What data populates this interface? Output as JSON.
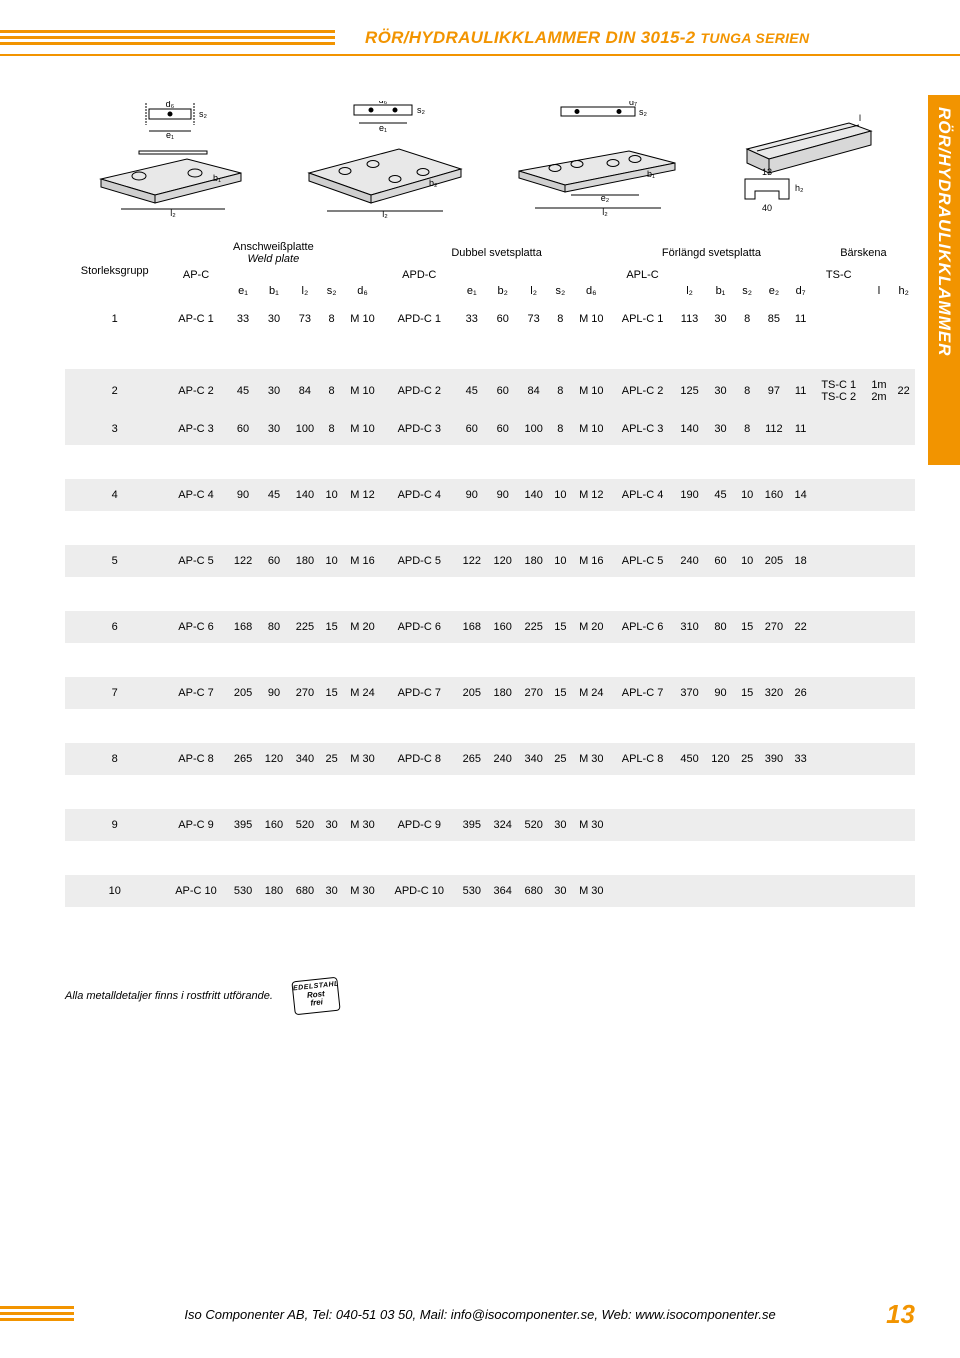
{
  "header": {
    "title_main": "RÖR/HYDRAULIKKLAMMER DIN 3015-2",
    "title_sub": "TUNGA SERIEN",
    "side_tab": "RÖR/HYDRAULIKKLAMMER"
  },
  "colors": {
    "accent": "#f29400",
    "shade": "#ededed"
  },
  "diagrams": {
    "ap_labels": {
      "d": "d₆",
      "e": "e₁",
      "b": "b₁",
      "l": "l₂",
      "s": "s₂"
    },
    "apd_labels": {
      "d": "d₆",
      "e": "e₁",
      "b": "b₂",
      "l": "l₂",
      "s": "s₂"
    },
    "apl_labels": {
      "d": "d₇",
      "e": "e₂",
      "b": "b₁",
      "l": "l₂",
      "s": "s₂"
    },
    "ts_labels": {
      "h": "h₂",
      "l": "l",
      "w": "40",
      "n": "13"
    }
  },
  "table": {
    "group_header": "Storleksgrupp",
    "groups": [
      {
        "code": "AP-C",
        "top": "Anschweißplatte",
        "top_it": "Weld plate",
        "cols": [
          "e₁",
          "b₁",
          "l₂",
          "s₂",
          "d₆"
        ]
      },
      {
        "code": "APD-C",
        "top": "Dubbel svetsplatta",
        "top_it": "",
        "cols": [
          "e₁",
          "b₂",
          "l₂",
          "s₂",
          "d₆"
        ]
      },
      {
        "code": "APL-C",
        "top": "Förlängd svetsplatta",
        "top_it": "",
        "cols": [
          "l₂",
          "b₁",
          "s₂",
          "e₂",
          "d₇"
        ]
      },
      {
        "code": "TS-C",
        "top": "Bärskena",
        "top_it": "",
        "cols": [
          "l",
          "h₂"
        ]
      }
    ],
    "rows": [
      {
        "n": "1",
        "ap": [
          "AP-C 1",
          "33",
          "30",
          "73",
          "8",
          "M 10"
        ],
        "apd": [
          "APD-C 1",
          "33",
          "60",
          "73",
          "8",
          "M 10"
        ],
        "apl": [
          "APL-C 1",
          "113",
          "30",
          "8",
          "85",
          "11"
        ],
        "ts": [
          "",
          "",
          ""
        ]
      },
      {
        "n": "2",
        "ap": [
          "AP-C 2",
          "45",
          "30",
          "84",
          "8",
          "M 10"
        ],
        "apd": [
          "APD-C 2",
          "45",
          "60",
          "84",
          "8",
          "M 10"
        ],
        "apl": [
          "APL-C 2",
          "125",
          "30",
          "8",
          "97",
          "11"
        ],
        "ts": [
          "TS-C 1",
          "1m",
          "22"
        ],
        "ts2": [
          "TS-C 2",
          "2m",
          ""
        ]
      },
      {
        "n": "3",
        "ap": [
          "AP-C 3",
          "60",
          "30",
          "100",
          "8",
          "M 10"
        ],
        "apd": [
          "APD-C 3",
          "60",
          "60",
          "100",
          "8",
          "M 10"
        ],
        "apl": [
          "APL-C 3",
          "140",
          "30",
          "8",
          "112",
          "11"
        ],
        "ts": [
          "",
          "",
          ""
        ]
      },
      {
        "n": "4",
        "ap": [
          "AP-C 4",
          "90",
          "45",
          "140",
          "10",
          "M 12"
        ],
        "apd": [
          "APD-C 4",
          "90",
          "90",
          "140",
          "10",
          "M 12"
        ],
        "apl": [
          "APL-C 4",
          "190",
          "45",
          "10",
          "160",
          "14"
        ],
        "ts": [
          "",
          "",
          ""
        ]
      },
      {
        "n": "5",
        "ap": [
          "AP-C 5",
          "122",
          "60",
          "180",
          "10",
          "M 16"
        ],
        "apd": [
          "APD-C 5",
          "122",
          "120",
          "180",
          "10",
          "M 16"
        ],
        "apl": [
          "APL-C 5",
          "240",
          "60",
          "10",
          "205",
          "18"
        ],
        "ts": [
          "",
          "",
          ""
        ]
      },
      {
        "n": "6",
        "ap": [
          "AP-C 6",
          "168",
          "80",
          "225",
          "15",
          "M 20"
        ],
        "apd": [
          "APD-C 6",
          "168",
          "160",
          "225",
          "15",
          "M 20"
        ],
        "apl": [
          "APL-C 6",
          "310",
          "80",
          "15",
          "270",
          "22"
        ],
        "ts": [
          "",
          "",
          ""
        ]
      },
      {
        "n": "7",
        "ap": [
          "AP-C 7",
          "205",
          "90",
          "270",
          "15",
          "M 24"
        ],
        "apd": [
          "APD-C 7",
          "205",
          "180",
          "270",
          "15",
          "M 24"
        ],
        "apl": [
          "APL-C 7",
          "370",
          "90",
          "15",
          "320",
          "26"
        ],
        "ts": [
          "",
          "",
          ""
        ]
      },
      {
        "n": "8",
        "ap": [
          "AP-C 8",
          "265",
          "120",
          "340",
          "25",
          "M 30"
        ],
        "apd": [
          "APD-C 8",
          "265",
          "240",
          "340",
          "25",
          "M 30"
        ],
        "apl": [
          "APL-C 8",
          "450",
          "120",
          "25",
          "390",
          "33"
        ],
        "ts": [
          "",
          "",
          ""
        ]
      },
      {
        "n": "9",
        "ap": [
          "AP-C 9",
          "395",
          "160",
          "520",
          "30",
          "M 30"
        ],
        "apd": [
          "APD-C 9",
          "395",
          "324",
          "520",
          "30",
          "M 30"
        ],
        "apl": [
          "",
          "",
          "",
          "",
          "",
          ""
        ],
        "ts": [
          "",
          "",
          ""
        ]
      },
      {
        "n": "10",
        "ap": [
          "AP-C 10",
          "530",
          "180",
          "680",
          "30",
          "M 30"
        ],
        "apd": [
          "APD-C 10",
          "530",
          "364",
          "680",
          "30",
          "M 30"
        ],
        "apl": [
          "",
          "",
          "",
          "",
          "",
          ""
        ],
        "ts": [
          "",
          "",
          ""
        ]
      }
    ]
  },
  "footnote": "Alla metalldetaljer finns i rostfritt utförande.",
  "badge": {
    "top": "EDELSTAHL",
    "l1": "Rost",
    "l2": "frei"
  },
  "footer": {
    "text": "Iso Componenter AB, Tel: 040-51 03 50, Mail: info@isocomponenter.se, Web: www.isocomponenter.se",
    "page": "13"
  }
}
